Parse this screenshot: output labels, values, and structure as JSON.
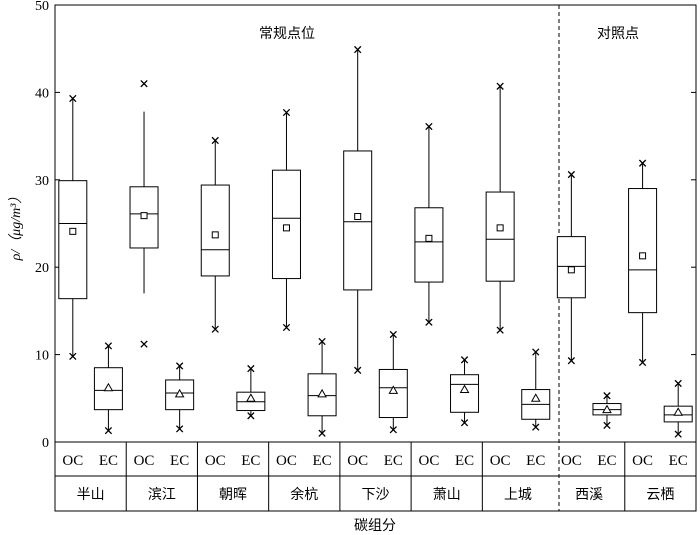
{
  "chart_data": {
    "type": "box",
    "title": "",
    "xlabel": "碳组分",
    "ylabel": "ρ/（μg/m³）",
    "ylim": [
      0,
      50
    ],
    "yticks": [
      0,
      10,
      20,
      30,
      40,
      50
    ],
    "group_labels": [
      "常规点位",
      "对照点"
    ],
    "sites": [
      "半山",
      "滨江",
      "朝晖",
      "余杭",
      "下沙",
      "萧山",
      "上城",
      "西溪",
      "云栖"
    ],
    "components": [
      "OC",
      "EC"
    ],
    "series": [
      {
        "name": "OC",
        "marker": "square",
        "boxes": [
          {
            "site": "半山",
            "min": 9.8,
            "q1": 16.4,
            "median": 25.0,
            "q3": 29.9,
            "max": 39.3,
            "mean": 24.1
          },
          {
            "site": "滨江",
            "min": 11.2,
            "q1": 22.2,
            "median": 26.1,
            "q3": 29.2,
            "max": 41.0,
            "mean": 25.9,
            "whisker_low": 17.0,
            "whisker_high": 37.8
          },
          {
            "site": "朝晖",
            "min": 12.9,
            "q1": 19.0,
            "median": 22.0,
            "q3": 29.4,
            "max": 34.5,
            "mean": 23.7
          },
          {
            "site": "余杭",
            "min": 13.1,
            "q1": 18.7,
            "median": 25.6,
            "q3": 31.1,
            "max": 37.7,
            "mean": 24.5
          },
          {
            "site": "下沙",
            "min": 8.2,
            "q1": 17.4,
            "median": 25.2,
            "q3": 33.3,
            "max": 44.9,
            "mean": 25.8
          },
          {
            "site": "萧山",
            "min": 13.7,
            "q1": 18.3,
            "median": 22.9,
            "q3": 26.8,
            "max": 36.1,
            "mean": 23.3
          },
          {
            "site": "上城",
            "min": 12.8,
            "q1": 18.4,
            "median": 23.2,
            "q3": 28.6,
            "max": 40.7,
            "mean": 24.5
          },
          {
            "site": "西溪",
            "min": 9.3,
            "q1": 16.5,
            "median": 20.1,
            "q3": 23.5,
            "max": 30.6,
            "mean": 19.7
          },
          {
            "site": "云栖",
            "min": 9.1,
            "q1": 14.8,
            "median": 19.7,
            "q3": 29.0,
            "max": 31.9,
            "mean": 21.3
          }
        ]
      },
      {
        "name": "EC",
        "marker": "triangle",
        "boxes": [
          {
            "site": "半山",
            "min": 1.3,
            "q1": 3.7,
            "median": 5.9,
            "q3": 8.5,
            "max": 11.0,
            "mean": 6.2
          },
          {
            "site": "滨江",
            "min": 1.5,
            "q1": 3.7,
            "median": 5.6,
            "q3": 7.1,
            "max": 8.7,
            "mean": 5.5
          },
          {
            "site": "朝晖",
            "min": 3.0,
            "q1": 3.6,
            "median": 4.6,
            "q3": 5.7,
            "max": 8.4,
            "mean": 5.0
          },
          {
            "site": "余杭",
            "min": 1.0,
            "q1": 3.0,
            "median": 5.3,
            "q3": 7.8,
            "max": 11.5,
            "mean": 5.5
          },
          {
            "site": "下沙",
            "min": 1.4,
            "q1": 2.8,
            "median": 6.2,
            "q3": 8.3,
            "max": 12.3,
            "mean": 5.9
          },
          {
            "site": "萧山",
            "min": 2.2,
            "q1": 3.4,
            "median": 6.6,
            "q3": 7.7,
            "max": 9.4,
            "mean": 6.0
          },
          {
            "site": "上城",
            "min": 1.7,
            "q1": 2.6,
            "median": 4.3,
            "q3": 6.0,
            "max": 10.3,
            "mean": 5.0
          },
          {
            "site": "西溪",
            "min": 1.9,
            "q1": 3.1,
            "median": 3.7,
            "q3": 4.4,
            "max": 5.3,
            "mean": 3.7
          },
          {
            "site": "云栖",
            "min": 0.9,
            "q1": 2.3,
            "median": 3.1,
            "q3": 4.1,
            "max": 6.7,
            "mean": 3.4
          }
        ]
      }
    ]
  }
}
